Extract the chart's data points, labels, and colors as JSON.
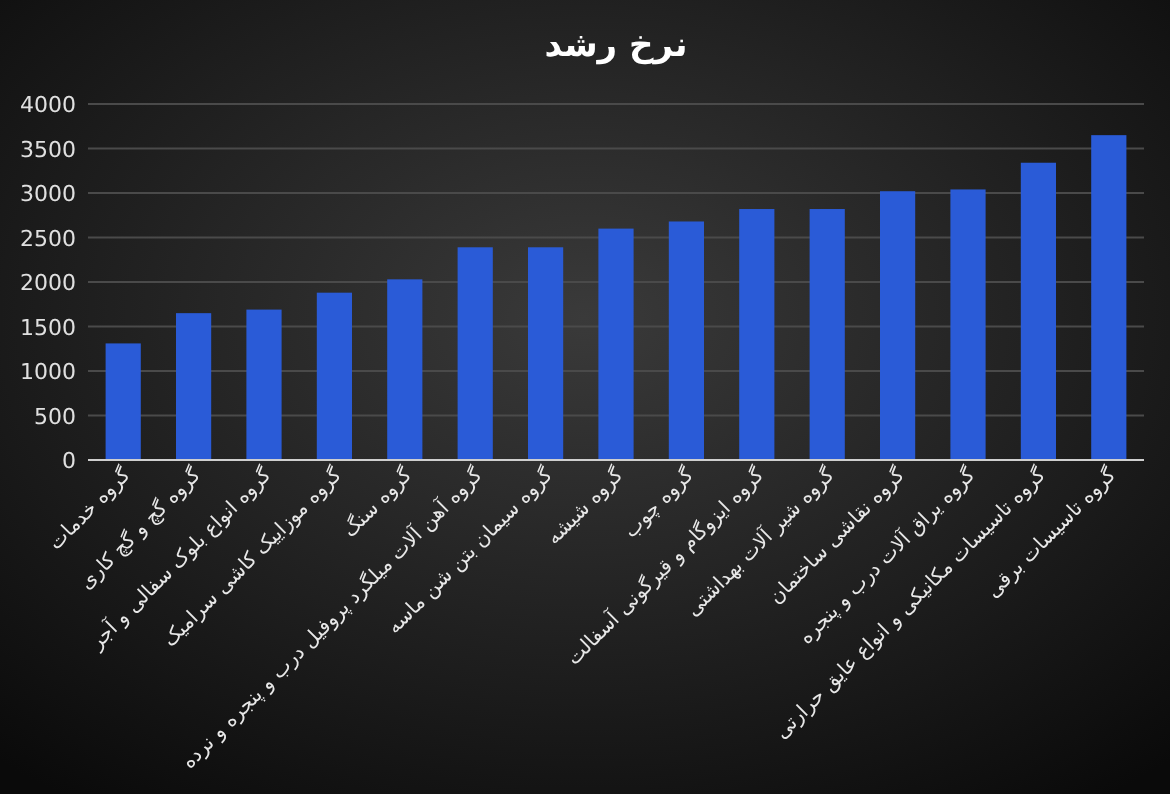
{
  "chart_data": {
    "type": "bar",
    "title": "نرخ رشد",
    "categories": [
      "گروه خدمات",
      "گروه گچ و گچ کاری",
      "گروه انواع بلوک سفالی و آجر",
      "گروه موزاییک کاشی سرامیک",
      "گروه سنگ",
      "گروه آهن آلات میلگرد پروفیل درب و پنجره و نرده",
      "گروه سیمان بتن شن ماسه",
      "گروه شیشه",
      "گروه چوب",
      "گروه ایزوگام و قیرگونی آسفالت",
      "گروه شیر آلات بهداشتی",
      "گروه نقاشی ساختمان",
      "گروه یراق آلات درب و پنجره",
      "گروه تاسیسات مکانیکی و انواع عایق حرارتی",
      "گروه تاسیسات برقی"
    ],
    "values": [
      1310,
      1650,
      1690,
      1880,
      2030,
      2390,
      2390,
      2600,
      2680,
      2820,
      2820,
      3020,
      3040,
      3340,
      3650
    ],
    "color": "#2a5bd7",
    "ylim": [
      0,
      4000
    ],
    "yticks": [
      0,
      500,
      1000,
      1500,
      2000,
      2500,
      3000,
      3500,
      4000
    ],
    "grid": "y"
  }
}
